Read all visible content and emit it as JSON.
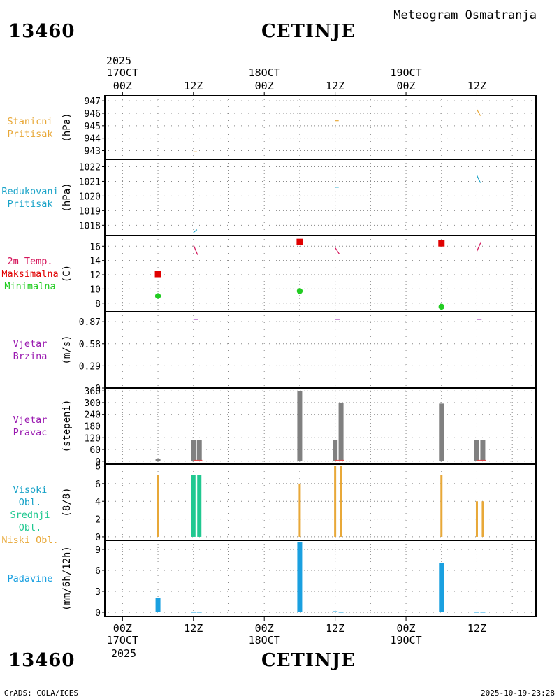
{
  "header": {
    "station_code": "13460",
    "station_name": "CETINJE",
    "chart_title": "Meteogram Osmatranja"
  },
  "footer": {
    "credit": "GrADS: COLA/IGES",
    "timestamp": "2025-10-19-23:28"
  },
  "time_axis": {
    "year": "2025",
    "ticks": [
      {
        "hour": 0,
        "top": "00Z",
        "date": "17OCT"
      },
      {
        "hour": 12,
        "top": "12Z",
        "date": ""
      },
      {
        "hour": 24,
        "top": "00Z",
        "date": "18OCT"
      },
      {
        "hour": 36,
        "top": "12Z",
        "date": ""
      },
      {
        "hour": 48,
        "top": "00Z",
        "date": "19OCT"
      },
      {
        "hour": 60,
        "top": "12Z",
        "date": ""
      }
    ],
    "range": [
      -3,
      70
    ]
  },
  "colors": {
    "pressure_station": "#e8a838",
    "pressure_reduced": "#1aa3c8",
    "temp_trace": "#d4145a",
    "temp_max": "#e00000",
    "temp_min": "#22cc22",
    "wind": "#9a1ab0",
    "wind_dir": "#808080",
    "wind_dir_marker": "#e84040",
    "cloud_high": "#1aa3c8",
    "cloud_mid": "#20c890",
    "cloud_low": "#e8a838",
    "precip": "#1aa0e0",
    "grid": "#888888"
  },
  "panels": [
    {
      "id": "station-pressure",
      "labels": [
        "Stanicni",
        "Pritisak"
      ],
      "label_colors": [
        "pressure_station",
        "pressure_station"
      ],
      "unit": "(hPa)"
    },
    {
      "id": "reduced-pressure",
      "labels": [
        "Redukovani",
        "Pritisak"
      ],
      "label_colors": [
        "pressure_reduced",
        "pressure_reduced"
      ],
      "unit": "(hPa)"
    },
    {
      "id": "temperature",
      "labels": [
        "2m Temp.",
        "Maksimalna",
        "Minimalna"
      ],
      "label_colors": [
        "temp_trace",
        "temp_max",
        "temp_min"
      ],
      "unit": "(C)"
    },
    {
      "id": "wind-speed",
      "labels": [
        "Vjetar",
        "Brzina"
      ],
      "label_colors": [
        "wind",
        "wind"
      ],
      "unit": "(m/s)"
    },
    {
      "id": "wind-direction",
      "labels": [
        "Vjetar",
        "Pravac"
      ],
      "label_colors": [
        "wind",
        "wind"
      ],
      "unit": "(stepeni)"
    },
    {
      "id": "clouds",
      "labels": [
        "Visoki Obl.",
        "Srednji Obl.",
        "Niski Obl."
      ],
      "label_colors": [
        "cloud_high",
        "cloud_mid",
        "cloud_low"
      ],
      "unit": "(8/8)"
    },
    {
      "id": "precipitation",
      "labels": [
        "Padavine"
      ],
      "label_colors": [
        "precip"
      ],
      "unit": "(mm/6h/12h)"
    }
  ],
  "chart_data": {
    "type": "meteogram",
    "title": "CETINJE",
    "station": "13460",
    "panels": {
      "station_pressure": {
        "ylabel": "(hPa)",
        "yticks": [
          943,
          944,
          945,
          946,
          947
        ],
        "ylim": [
          942.3,
          947.4
        ],
        "segments": [
          {
            "x1": 12,
            "y1": 942.9,
            "x2": 12.6,
            "y2": 942.9
          },
          {
            "x1": 36,
            "y1": 945.4,
            "x2": 36.6,
            "y2": 945.4
          },
          {
            "x1": 60,
            "y1": 946.3,
            "x2": 60.6,
            "y2": 945.8
          }
        ]
      },
      "reduced_pressure": {
        "ylabel": "(hPa)",
        "yticks": [
          1018,
          1019,
          1020,
          1021,
          1022
        ],
        "ylim": [
          1017.3,
          1022.5
        ],
        "segments": [
          {
            "x1": 12,
            "y1": 1017.5,
            "x2": 12.6,
            "y2": 1017.7
          },
          {
            "x1": 36,
            "y1": 1020.6,
            "x2": 36.6,
            "y2": 1020.6
          },
          {
            "x1": 60,
            "y1": 1021.4,
            "x2": 60.6,
            "y2": 1020.9
          }
        ]
      },
      "temperature": {
        "ylabel": "(C)",
        "yticks": [
          8,
          10,
          12,
          14,
          16
        ],
        "ylim": [
          6.8,
          17.5
        ],
        "trace": [
          {
            "x1": 12,
            "y1": 16.2,
            "x2": 12.7,
            "y2": 14.8
          },
          {
            "x1": 36,
            "y1": 15.8,
            "x2": 36.7,
            "y2": 14.9
          },
          {
            "x1": 60,
            "y1": 15.3,
            "x2": 60.7,
            "y2": 16.6
          }
        ],
        "max": [
          {
            "x": 6,
            "y": 12.1
          },
          {
            "x": 30,
            "y": 16.6
          },
          {
            "x": 54,
            "y": 16.4
          }
        ],
        "min": [
          {
            "x": 6,
            "y": 9.0
          },
          {
            "x": 30,
            "y": 9.7
          },
          {
            "x": 54,
            "y": 7.5
          }
        ]
      },
      "wind_speed": {
        "ylabel": "(m/s)",
        "yticks": [
          0,
          0.29,
          0.58,
          0.87
        ],
        "ylim": [
          0,
          1.0
        ],
        "segments": [
          {
            "x1": 12,
            "y1": 0.9,
            "x2": 12.8,
            "y2": 0.9
          },
          {
            "x1": 36,
            "y1": 0.9,
            "x2": 36.8,
            "y2": 0.9
          },
          {
            "x1": 60,
            "y1": 0.9,
            "x2": 60.8,
            "y2": 0.9
          }
        ]
      },
      "wind_direction": {
        "ylabel": "(stepeni)",
        "yticks": [
          0,
          60,
          120,
          180,
          240,
          300,
          360
        ],
        "ylim": [
          -15,
          375
        ],
        "bars": [
          {
            "x": 6,
            "value": 10
          },
          {
            "x": 12,
            "value": 110
          },
          {
            "x": 13,
            "value": 110
          },
          {
            "x": 30,
            "value": 360
          },
          {
            "x": 36,
            "value": 110
          },
          {
            "x": 37,
            "value": 300
          },
          {
            "x": 54,
            "value": 295
          },
          {
            "x": 60,
            "value": 110
          },
          {
            "x": 61,
            "value": 110
          }
        ],
        "markers": [
          {
            "x1": 12,
            "x2": 13.5,
            "y": 5
          },
          {
            "x1": 36,
            "x2": 37.5,
            "y": 5
          },
          {
            "x1": 60,
            "x2": 61.5,
            "y": 5
          }
        ]
      },
      "clouds": {
        "ylabel": "(8/8)",
        "yticks": [
          0,
          2,
          4,
          6,
          8
        ],
        "ylim": [
          -0.4,
          8.2
        ],
        "low": [
          {
            "x": 6,
            "value": 7
          },
          {
            "x": 30,
            "value": 6
          },
          {
            "x": 36,
            "value": 8
          },
          {
            "x": 37,
            "value": 8
          },
          {
            "x": 54,
            "value": 7
          },
          {
            "x": 60,
            "value": 4
          },
          {
            "x": 61,
            "value": 4
          }
        ],
        "mid": [
          {
            "x": 12,
            "value": 7
          },
          {
            "x": 13,
            "value": 7
          }
        ]
      },
      "precipitation": {
        "ylabel": "(mm/6h/12h)",
        "yticks": [
          0,
          3,
          6,
          9
        ],
        "ylim": [
          -0.6,
          10.3
        ],
        "bars": [
          {
            "x": 6,
            "value": 2.1
          },
          {
            "x": 12,
            "value": 0.1
          },
          {
            "x": 13,
            "value": 0.1
          },
          {
            "x": 30,
            "value": 10.0
          },
          {
            "x": 36,
            "value": 0.15
          },
          {
            "x": 37,
            "value": 0.1
          },
          {
            "x": 54,
            "value": 7.1
          },
          {
            "x": 60,
            "value": 0.1
          },
          {
            "x": 61,
            "value": 0.1
          }
        ]
      }
    }
  }
}
